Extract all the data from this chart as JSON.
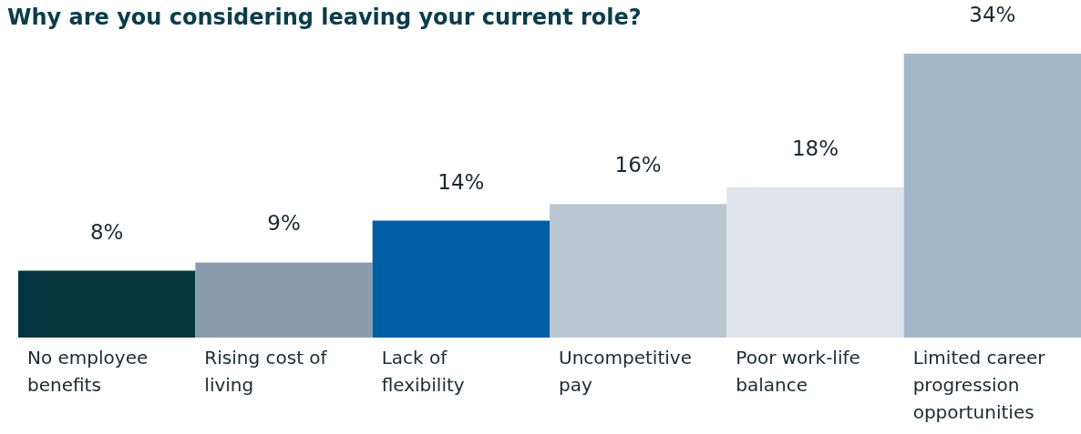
{
  "chart_data": {
    "type": "bar",
    "title": "Why are you considering leaving your current role?",
    "categories": [
      "No employee benefits",
      "Rising cost of living",
      "Lack of flexibility",
      "Uncompetitive pay",
      "Poor work-life balance",
      "Limited career progression opportunities"
    ],
    "values": [
      8,
      9,
      14,
      16,
      18,
      34
    ],
    "colors": [
      "#05363f",
      "#8a9db0",
      "#005ea5",
      "#bac7d3",
      "#dfe3eb",
      "#a3b9ca"
    ],
    "value_labels": [
      "8%",
      "9%",
      "14%",
      "16%",
      "18%",
      "34%"
    ]
  }
}
